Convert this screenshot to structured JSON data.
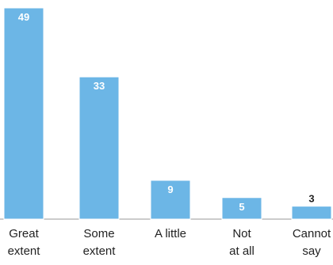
{
  "chart_data": {
    "type": "bar",
    "categories": [
      [
        "Great",
        "extent"
      ],
      [
        "Some",
        "extent"
      ],
      [
        "A little"
      ],
      [
        "Not",
        "at all"
      ],
      [
        "Cannot",
        "say"
      ]
    ],
    "values": [
      49,
      33,
      9,
      5,
      3
    ],
    "ylim": [
      0,
      49
    ],
    "colors": {
      "bar": "#6cb6e6",
      "label_inside": "#ffffff",
      "label_outside": "#222222"
    },
    "grid": false,
    "legend": "none"
  }
}
